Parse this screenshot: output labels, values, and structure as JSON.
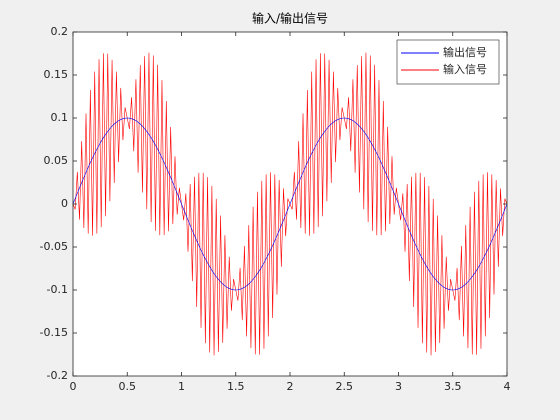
{
  "chart_data": {
    "type": "line",
    "title": "输入/输出信号",
    "x": [
      0,
      0.02,
      0.04,
      0.06,
      0.08,
      0.1,
      0.12,
      0.14,
      0.16,
      0.18,
      0.2,
      0.22,
      0.24,
      0.26,
      0.28,
      0.3,
      0.32,
      0.34,
      0.36,
      0.38,
      0.4,
      0.42,
      0.44,
      0.46,
      0.48,
      0.5,
      0.52,
      0.54,
      0.56,
      0.58,
      0.6,
      0.62,
      0.64,
      0.66,
      0.68,
      0.7,
      0.72,
      0.74,
      0.76,
      0.78,
      0.8,
      0.82,
      0.84,
      0.86,
      0.88,
      0.9,
      0.92,
      0.94,
      0.96,
      0.98,
      1,
      1.02,
      1.04,
      1.06,
      1.08,
      1.1,
      1.12,
      1.14,
      1.16,
      1.18,
      1.2,
      1.22,
      1.24,
      1.26,
      1.28,
      1.3,
      1.32,
      1.34,
      1.36,
      1.38,
      1.4,
      1.42,
      1.44,
      1.46,
      1.48,
      1.5,
      1.52,
      1.54,
      1.56,
      1.58,
      1.6,
      1.62,
      1.64,
      1.66,
      1.68,
      1.7,
      1.72,
      1.74,
      1.76,
      1.78,
      1.8,
      1.82,
      1.84,
      1.86,
      1.88,
      1.9,
      1.92,
      1.94,
      1.96,
      1.98,
      2,
      2.02,
      2.04,
      2.06,
      2.08,
      2.1,
      2.12,
      2.14,
      2.16,
      2.18,
      2.2,
      2.22,
      2.24,
      2.26,
      2.28,
      2.3,
      2.32,
      2.34,
      2.36,
      2.38,
      2.4,
      2.42,
      2.44,
      2.46,
      2.48,
      2.5,
      2.52,
      2.54,
      2.56,
      2.58,
      2.6,
      2.62,
      2.64,
      2.66,
      2.68,
      2.7,
      2.72,
      2.74,
      2.76,
      2.78,
      2.8,
      2.82,
      2.84,
      2.86,
      2.88,
      2.9,
      2.92,
      2.94,
      2.96,
      2.98,
      3,
      3.02,
      3.04,
      3.06,
      3.08,
      3.1,
      3.12,
      3.14,
      3.16,
      3.18,
      3.2,
      3.22,
      3.24,
      3.26,
      3.28,
      3.3,
      3.32,
      3.34,
      3.36,
      3.38,
      3.4,
      3.42,
      3.44,
      3.46,
      3.48,
      3.5,
      3.52,
      3.54,
      3.56,
      3.58,
      3.6,
      3.62,
      3.64,
      3.66,
      3.68,
      3.7,
      3.72,
      3.74,
      3.76,
      3.78,
      3.8,
      3.82,
      3.84,
      3.86,
      3.88,
      3.9,
      3.92,
      3.94,
      3.96,
      3.98,
      4
    ],
    "series": [
      {
        "name": "输出信号",
        "color": "#0000ff",
        "values": [
          0,
          0.0063,
          0.0125,
          0.0187,
          0.0249,
          0.0309,
          0.0368,
          0.0426,
          0.0482,
          0.0536,
          0.0588,
          0.0637,
          0.0685,
          0.0729,
          0.0771,
          0.0809,
          0.0844,
          0.0876,
          0.0905,
          0.093,
          0.0951,
          0.0969,
          0.0982,
          0.0992,
          0.0998,
          0.1,
          0.0998,
          0.0992,
          0.0982,
          0.0969,
          0.0951,
          0.093,
          0.0905,
          0.0876,
          0.0844,
          0.0809,
          0.0771,
          0.0729,
          0.0685,
          0.0637,
          0.0588,
          0.0536,
          0.0482,
          0.0426,
          0.0368,
          0.0309,
          0.0249,
          0.0187,
          0.0125,
          0.0063,
          0,
          -0.0063,
          -0.0125,
          -0.0187,
          -0.0249,
          -0.0309,
          -0.0368,
          -0.0426,
          -0.0482,
          -0.0536,
          -0.0588,
          -0.0637,
          -0.0685,
          -0.0729,
          -0.0771,
          -0.0809,
          -0.0844,
          -0.0876,
          -0.0905,
          -0.093,
          -0.0951,
          -0.0969,
          -0.0982,
          -0.0992,
          -0.0998,
          -0.1,
          -0.0998,
          -0.0992,
          -0.0982,
          -0.0969,
          -0.0951,
          -0.093,
          -0.0905,
          -0.0876,
          -0.0844,
          -0.0809,
          -0.0771,
          -0.0729,
          -0.0685,
          -0.0637,
          -0.0588,
          -0.0536,
          -0.0482,
          -0.0426,
          -0.0368,
          -0.0309,
          -0.0249,
          -0.0187,
          -0.0125,
          -0.0063,
          0,
          0.0063,
          0.0125,
          0.0187,
          0.0249,
          0.0309,
          0.0368,
          0.0426,
          0.0482,
          0.0536,
          0.0588,
          0.0637,
          0.0685,
          0.0729,
          0.0771,
          0.0809,
          0.0844,
          0.0876,
          0.0905,
          0.093,
          0.0951,
          0.0969,
          0.0982,
          0.0992,
          0.0998,
          0.1,
          0.0998,
          0.0992,
          0.0982,
          0.0969,
          0.0951,
          0.093,
          0.0905,
          0.0876,
          0.0844,
          0.0809,
          0.0771,
          0.0729,
          0.0685,
          0.0637,
          0.0588,
          0.0536,
          0.0482,
          0.0426,
          0.0368,
          0.0309,
          0.0249,
          0.0187,
          0.0125,
          0.0063,
          0,
          -0.0063,
          -0.0125,
          -0.0187,
          -0.0249,
          -0.0309,
          -0.0368,
          -0.0426,
          -0.0482,
          -0.0536,
          -0.0588,
          -0.0637,
          -0.0685,
          -0.0729,
          -0.0771,
          -0.0809,
          -0.0844,
          -0.0876,
          -0.0905,
          -0.093,
          -0.0951,
          -0.0969,
          -0.0982,
          -0.0992,
          -0.0998,
          -0.1,
          -0.0998,
          -0.0992,
          -0.0982,
          -0.0969,
          -0.0951,
          -0.093,
          -0.0905,
          -0.0876,
          -0.0844,
          -0.0809,
          -0.0771,
          -0.0729,
          -0.0685,
          -0.0637,
          -0.0588,
          -0.0536,
          -0.0482,
          -0.0426,
          -0.0368,
          -0.0309,
          -0.0249,
          -0.0187,
          -0.0125,
          -0.0063,
          0
        ]
      },
      {
        "name": "输入信号",
        "color": "#ff0000",
        "values": [
          0,
          -0.0062,
          0.0374,
          -0.0181,
          0.0731,
          -0.0279,
          0.1053,
          -0.0345,
          0.1326,
          -0.0369,
          0.1539,
          -0.0345,
          0.1683,
          -0.0269,
          0.1753,
          -0.0142,
          0.1749,
          0.0032,
          0.1676,
          0.0245,
          0.1539,
          0.0487,
          0.135,
          0.0743,
          0.1123,
          0.1,
          0.0873,
          0.1241,
          0.0614,
          0.1451,
          0.0363,
          0.1615,
          0.0134,
          0.172,
          -0.0061,
          0.176,
          -0.0211,
          0.1727,
          -0.0313,
          0.1619,
          -0.0363,
          0.1441,
          -0.0362,
          0.1197,
          -0.0317,
          0.0897,
          -0.0233,
          0.0555,
          -0.0124,
          0.0188,
          0,
          -0.0188,
          0.0124,
          -0.0555,
          0.0233,
          -0.0897,
          0.0317,
          -0.1197,
          0.0362,
          -0.1441,
          0.0363,
          -0.1619,
          0.0313,
          -0.1727,
          0.0211,
          -0.176,
          0.0061,
          -0.172,
          -0.0134,
          -0.1615,
          -0.0363,
          -0.1451,
          -0.0614,
          -0.1241,
          -0.0873,
          -0.1,
          -0.1123,
          -0.0743,
          -0.135,
          -0.0487,
          -0.1539,
          -0.0245,
          -0.1676,
          -0.0032,
          -0.1749,
          0.0142,
          -0.1753,
          0.0269,
          -0.1683,
          0.0345,
          -0.1539,
          0.0369,
          -0.1326,
          0.0345,
          -0.1053,
          0.0279,
          -0.0731,
          0.0181,
          -0.0374,
          0.0062,
          0,
          -0.0062,
          0.0374,
          -0.0181,
          0.0731,
          -0.0279,
          0.1053,
          -0.0345,
          0.1326,
          -0.0369,
          0.1539,
          -0.0345,
          0.1683,
          -0.0269,
          0.1753,
          -0.0142,
          0.1749,
          0.0032,
          0.1676,
          0.0245,
          0.1539,
          0.0487,
          0.135,
          0.0743,
          0.1123,
          0.1,
          0.0873,
          0.1241,
          0.0614,
          0.1451,
          0.0363,
          0.1615,
          0.0134,
          0.172,
          -0.0061,
          0.176,
          -0.0211,
          0.1727,
          -0.0313,
          0.1619,
          -0.0363,
          0.1441,
          -0.0362,
          0.1197,
          -0.0317,
          0.0897,
          -0.0233,
          0.0555,
          -0.0124,
          0.0188,
          0,
          -0.0188,
          0.0124,
          -0.0555,
          0.0233,
          -0.0897,
          0.0317,
          -0.1197,
          0.0362,
          -0.1441,
          0.0363,
          -0.1619,
          0.0313,
          -0.1727,
          0.0211,
          -0.176,
          0.0061,
          -0.172,
          -0.0134,
          -0.1615,
          -0.0363,
          -0.1451,
          -0.0614,
          -0.1241,
          -0.0873,
          -0.1,
          -0.1123,
          -0.0743,
          -0.135,
          -0.0487,
          -0.1539,
          -0.0245,
          -0.1676,
          -0.0032,
          -0.1749,
          0.0142,
          -0.1753,
          0.0269,
          -0.1683,
          0.0345,
          -0.1539,
          0.0369,
          -0.1326,
          0.0345,
          -0.1053,
          0.0279,
          -0.0731,
          0.0181,
          -0.0374,
          0.0062,
          0
        ]
      }
    ],
    "xlim": [
      0,
      4
    ],
    "xticks": [
      0,
      0.5,
      1,
      1.5,
      2,
      2.5,
      3,
      3.5,
      4
    ],
    "ylim": [
      -0.2,
      0.2
    ],
    "yticks": [
      -0.2,
      -0.15,
      -0.1,
      -0.05,
      0,
      0.05,
      0.1,
      0.15,
      0.2
    ],
    "legend": "top-right"
  }
}
